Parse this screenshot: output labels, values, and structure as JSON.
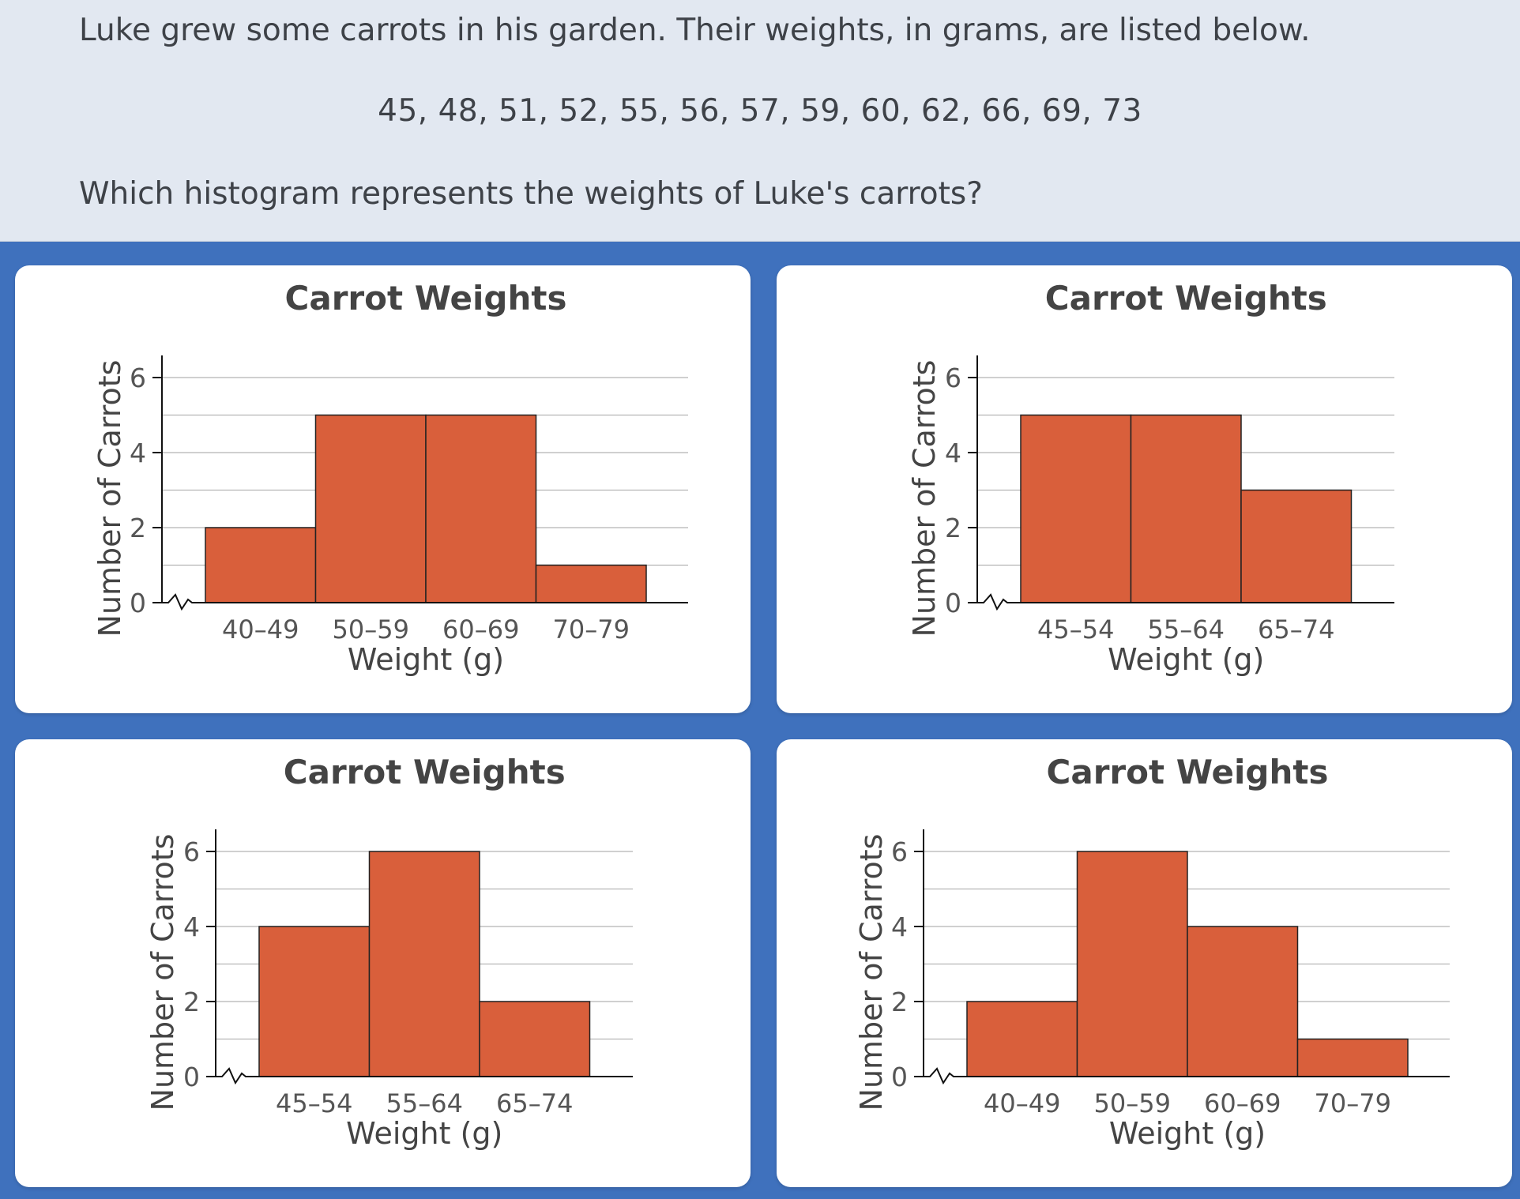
{
  "question": {
    "prompt": "Luke grew some carrots in his garden. Their weights, in grams, are listed below.",
    "data_list": "45, 48, 51, 52, 55, 56, 57, 59, 60, 62, 66, 69, 73",
    "question": "Which histogram represents the weights of Luke's carrots?"
  },
  "colors": {
    "bar": "#d95f3b",
    "background": "#3f71bd",
    "question_panel": "#e2e8f1"
  },
  "chart_data": [
    {
      "type": "bar",
      "title": "Carrot Weights",
      "xlabel": "Weight (g)",
      "ylabel": "Number of Carrots",
      "categories": [
        "40–49",
        "50–59",
        "60–69",
        "70–79"
      ],
      "values": [
        2,
        5,
        5,
        1
      ],
      "ylim": [
        0,
        6
      ],
      "yticks": [
        0,
        2,
        4,
        6
      ],
      "grid": true,
      "axis_break": true
    },
    {
      "type": "bar",
      "title": "Carrot Weights",
      "xlabel": "Weight (g)",
      "ylabel": "Number of Carrots",
      "categories": [
        "45–54",
        "55–64",
        "65–74"
      ],
      "values": [
        5,
        5,
        3
      ],
      "ylim": [
        0,
        6
      ],
      "yticks": [
        0,
        2,
        4,
        6
      ],
      "grid": true,
      "axis_break": true
    },
    {
      "type": "bar",
      "title": "Carrot Weights",
      "xlabel": "Weight (g)",
      "ylabel": "Number of Carrots",
      "categories": [
        "45–54",
        "55–64",
        "65–74"
      ],
      "values": [
        4,
        6,
        2
      ],
      "ylim": [
        0,
        6
      ],
      "yticks": [
        0,
        2,
        4,
        6
      ],
      "grid": true,
      "axis_break": true
    },
    {
      "type": "bar",
      "title": "Carrot Weights",
      "xlabel": "Weight (g)",
      "ylabel": "Number of Carrots",
      "categories": [
        "40–49",
        "50–59",
        "60–69",
        "70–79"
      ],
      "values": [
        2,
        6,
        4,
        1
      ],
      "ylim": [
        0,
        6
      ],
      "yticks": [
        0,
        2,
        4,
        6
      ],
      "grid": true,
      "axis_break": true
    }
  ]
}
